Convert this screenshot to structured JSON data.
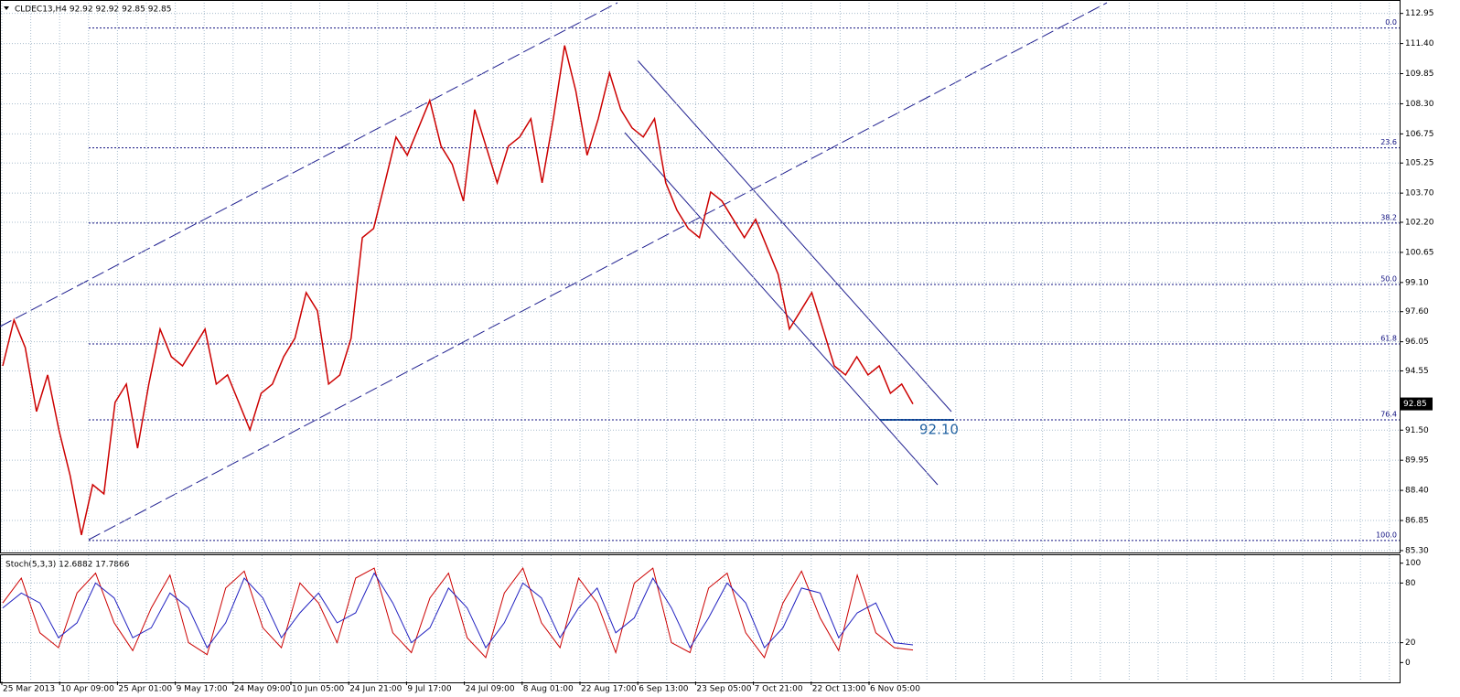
{
  "chart_data": [
    {
      "type": "line",
      "title": "CLDEC13,H4  92.92 92.92 92.85 92.85",
      "x_labels": [
        "25 Mar 2013",
        "10 Apr 09:00",
        "25 Apr 01:00",
        "9 May 17:00",
        "24 May 09:00",
        "10 Jun 05:00",
        "24 Jun 21:00",
        "9 Jul 17:00",
        "24 Jul 09:00",
        "8 Aug 01:00",
        "22 Aug 17:00",
        "6 Sep 13:00",
        "23 Sep 05:00",
        "7 Oct 21:00",
        "22 Oct 13:00",
        "6 Nov 05:00"
      ],
      "series": [
        {
          "color": "#cc0000",
          "values": [
            94.81,
            97.17,
            95.75,
            92.46,
            94.34,
            91.51,
            89.16,
            86.1,
            88.69,
            88.22,
            92.93,
            93.87,
            90.57,
            93.87,
            96.7,
            95.28,
            94.81,
            95.75,
            96.7,
            93.87,
            94.34,
            92.93,
            91.51,
            93.4,
            93.87,
            95.28,
            96.23,
            98.58,
            97.64,
            93.87,
            94.34,
            96.23,
            101.41,
            101.88,
            104.23,
            106.59,
            105.65,
            107.06,
            108.47,
            106.12,
            105.18,
            103.29,
            108.0,
            106.12,
            104.23,
            106.12,
            106.59,
            107.53,
            104.23,
            107.53,
            111.3,
            108.95,
            105.65,
            107.53,
            109.89,
            108.0,
            107.06,
            106.59,
            107.53,
            104.23,
            102.82,
            101.88,
            101.41,
            103.76,
            103.29,
            102.35,
            101.41,
            102.35,
            100.94,
            99.52,
            96.7,
            97.64,
            98.58,
            96.7,
            94.81,
            94.34,
            95.28,
            94.34,
            94.81,
            93.4,
            93.87,
            92.85
          ]
        }
      ],
      "ylim": [
        85.25,
        113.5
      ],
      "yticks": [
        112.95,
        {
          "value": 111.4,
          "label": "111.40"
        },
        109.85,
        {
          "value": 108.3,
          "label": "108.30"
        },
        106.75,
        105.25,
        {
          "value": 103.7,
          "label": "103.70"
        },
        {
          "value": 102.2,
          "label": "102.20"
        },
        100.65,
        {
          "value": 99.1,
          "label": "99.10"
        },
        {
          "value": 97.6,
          "label": "97.60"
        },
        96.05,
        94.55,
        {
          "value": 91.5,
          "label": "91.50"
        },
        89.95,
        {
          "value": 88.4,
          "label": "88.40"
        },
        86.85,
        {
          "value": 85.3,
          "label": "85.30"
        }
      ],
      "current_price": 92.85,
      "fib_levels": [
        {
          "level": "0.0",
          "price": 112.2
        },
        {
          "level": "23.6",
          "price": 106.03
        },
        {
          "level": "38.2",
          "price": 102.16
        },
        {
          "level": "50.0",
          "price": 99.0
        },
        {
          "level": "61.8",
          "price": 95.94
        },
        {
          "level": "76.4",
          "price": 92.03
        },
        {
          "level": "100.0",
          "price": 85.82
        }
      ],
      "annotation": "92.10",
      "grid": true
    },
    {
      "type": "line",
      "title": "Stoch(5,3,3) 12.6882 17.7866",
      "series": [
        {
          "color": "#cc0000",
          "values": [
            60,
            85,
            30,
            15,
            70,
            90,
            40,
            12,
            55,
            88,
            20,
            8,
            75,
            92,
            35,
            15,
            80,
            60,
            20,
            85,
            95,
            30,
            10,
            65,
            90,
            25,
            5,
            70,
            95,
            40,
            15,
            85,
            60,
            10,
            80,
            95,
            20,
            10,
            75,
            90,
            30,
            5,
            60,
            92,
            45,
            12,
            88,
            30,
            15,
            12.6882
          ]
        },
        {
          "color": "#2020c0",
          "values": [
            55,
            70,
            60,
            25,
            40,
            80,
            65,
            25,
            35,
            70,
            55,
            15,
            40,
            85,
            65,
            25,
            50,
            70,
            40,
            50,
            90,
            60,
            20,
            35,
            75,
            55,
            15,
            40,
            80,
            65,
            25,
            55,
            75,
            30,
            45,
            85,
            55,
            15,
            45,
            80,
            60,
            15,
            35,
            75,
            70,
            25,
            50,
            60,
            20,
            17.7866
          ]
        }
      ],
      "ylim": [
        -19,
        108
      ],
      "yticks": [
        0,
        20,
        80,
        100
      ]
    }
  ]
}
